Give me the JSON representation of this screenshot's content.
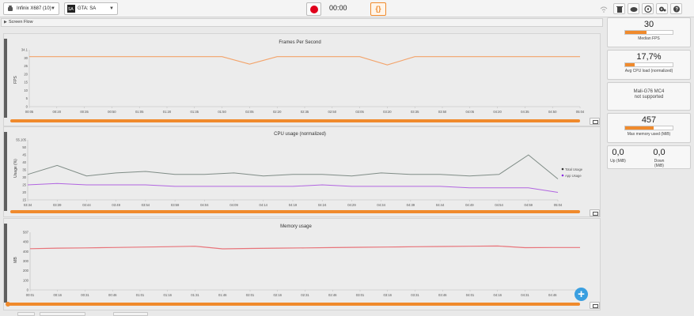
{
  "toolbar": {
    "device": "Infinix X687 (10)",
    "app": "GTA: SA",
    "timer": "00:00",
    "json_label": "{}"
  },
  "section_label": "Screen Flow",
  "panels": {
    "fps": {
      "title": "Frames Per Second",
      "ylabel": "FPS",
      "yticks": [
        "34.1",
        "30",
        "25",
        "20",
        "15",
        "10",
        "5",
        "0"
      ],
      "xticks": [
        "00:05",
        "00:20",
        "00:35",
        "00:50",
        "01:05",
        "01:20",
        "01:35",
        "01:50",
        "02:05",
        "02:20",
        "02:35",
        "02:50",
        "03:05",
        "03:20",
        "03:35",
        "03:50",
        "04:05",
        "04:20",
        "04:35",
        "04:50",
        "05:04"
      ]
    },
    "cpu": {
      "title": "CPU usage (normalized)",
      "ylabel": "Usage (%)",
      "yticks": [
        "55.105",
        "50",
        "45",
        "40",
        "35",
        "30",
        "25",
        "20",
        "15"
      ],
      "xticks": [
        "03:34",
        "03:39",
        "03:44",
        "03:49",
        "03:54",
        "03:59",
        "04:04",
        "04:09",
        "04:14",
        "04:19",
        "04:24",
        "04:29",
        "04:34",
        "04:39",
        "04:44",
        "04:49",
        "04:54",
        "04:59",
        "05:04"
      ],
      "legend": [
        "Total Usage",
        "App Usage"
      ]
    },
    "mem": {
      "title": "Memory usage",
      "ylabel": "MB",
      "yticks": [
        "587",
        "480",
        "400",
        "300",
        "200",
        "100",
        "0"
      ],
      "xticks": [
        "00:01",
        "00:16",
        "00:31",
        "00:46",
        "01:01",
        "01:16",
        "01:31",
        "01:46",
        "02:01",
        "02:16",
        "02:31",
        "02:46",
        "03:01",
        "03:16",
        "03:31",
        "03:46",
        "04:01",
        "04:16",
        "04:31",
        "04:46",
        "05:01"
      ]
    }
  },
  "stats": {
    "fps_value": "30",
    "fps_label": "Median FPS",
    "fps_fill": 0.45,
    "cpu_value": "17,7%",
    "cpu_label": "Avg CPU load (normalized)",
    "cpu_fill": 0.2,
    "gpu_name": "Mali-G76 MC4",
    "gpu_status": "not supported",
    "mem_value": "457",
    "mem_label": "Max memory used (MiB)",
    "mem_fill": 0.6,
    "up_value": "0,0",
    "up_label": "Up (MiB)",
    "down_value": "0,0",
    "down_label": "Down (MiB)"
  },
  "colors": {
    "accent": "#f08a2c",
    "fps_line": "#f3a36a",
    "cpu_total": "#7f8c86",
    "cpu_app": "#b165e0",
    "mem_line": "#e8747a",
    "record": "#e0001b",
    "add": "#3a9fe0"
  },
  "chart_data": [
    {
      "type": "line",
      "title": "Frames Per Second",
      "ylabel": "FPS",
      "ylim": [
        0,
        34.1
      ],
      "x": [
        "00:05",
        "00:20",
        "00:35",
        "00:50",
        "01:05",
        "01:20",
        "01:35",
        "01:50",
        "02:05",
        "02:20",
        "02:35",
        "02:50",
        "03:05",
        "03:20",
        "03:35",
        "03:50",
        "04:05",
        "04:20",
        "04:35",
        "04:50",
        "05:04"
      ],
      "series": [
        {
          "values": [
            30,
            30,
            30,
            30,
            30,
            30,
            30,
            30,
            25.5,
            30,
            30,
            30,
            30,
            25,
            30,
            30,
            30,
            30,
            30,
            30,
            30
          ]
        }
      ]
    },
    {
      "type": "line",
      "title": "CPU usage (normalized)",
      "ylabel": "Usage (%)",
      "ylim": [
        15,
        55.105
      ],
      "x": [
        "03:34",
        "03:39",
        "03:44",
        "03:49",
        "03:54",
        "03:59",
        "04:04",
        "04:09",
        "04:14",
        "04:19",
        "04:24",
        "04:29",
        "04:34",
        "04:39",
        "04:44",
        "04:49",
        "04:54",
        "04:59",
        "05:04"
      ],
      "series": [
        {
          "name": "Total Usage",
          "values": [
            32,
            38,
            31,
            33,
            34,
            32,
            32,
            33,
            31,
            32,
            32,
            31,
            33,
            32,
            32,
            31,
            32,
            45,
            29
          ]
        },
        {
          "name": "App Usage",
          "values": [
            25,
            26,
            25,
            25,
            25,
            24,
            24,
            24,
            24,
            24,
            25,
            24,
            24,
            24,
            24,
            23,
            23,
            23,
            20
          ]
        }
      ]
    },
    {
      "type": "line",
      "title": "Memory usage",
      "ylabel": "MB",
      "ylim": [
        0,
        587
      ],
      "x": [
        "00:01",
        "00:16",
        "00:31",
        "00:46",
        "01:01",
        "01:16",
        "01:31",
        "01:46",
        "02:01",
        "02:16",
        "02:31",
        "02:46",
        "03:01",
        "03:16",
        "03:31",
        "03:46",
        "04:01",
        "04:16",
        "04:31",
        "04:46",
        "05:01"
      ],
      "series": [
        {
          "values": [
            420,
            425,
            428,
            432,
            436,
            440,
            445,
            418,
            422,
            425,
            428,
            431,
            434,
            437,
            440,
            442,
            445,
            447,
            430,
            432,
            432
          ]
        }
      ]
    }
  ]
}
